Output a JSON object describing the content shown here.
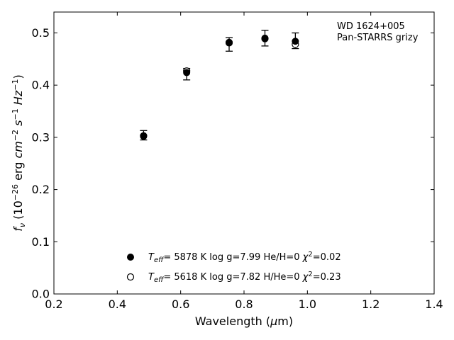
{
  "chart_data": {
    "type": "scatter",
    "xlabel": "Wavelength (μm)",
    "ylabel": "f_ν (10^-26 erg cm^-2 s^-1 Hz^-1)",
    "xlim": [
      0.2,
      1.4
    ],
    "ylim": [
      0.0,
      0.54
    ],
    "x_ticks": [
      0.2,
      0.4,
      0.6,
      0.8,
      1.0,
      1.2,
      1.4
    ],
    "y_ticks": [
      0.0,
      0.1,
      0.2,
      0.3,
      0.4,
      0.5
    ],
    "x_tick_labels": [
      "0.2",
      "0.4",
      "0.6",
      "0.8",
      "1.0",
      "1.2",
      "1.4"
    ],
    "y_tick_labels": [
      "0.0",
      "0.1",
      "0.2",
      "0.3",
      "0.4",
      "0.5"
    ],
    "grid": false,
    "annotation": [
      "WD 1624+005",
      "Pan-STARRS grizy"
    ],
    "annotation_position": "top-right",
    "observed": {
      "x": [
        0.483,
        0.619,
        0.753,
        0.866,
        0.962
      ],
      "y": [
        0.304,
        0.421,
        0.478,
        0.49,
        0.485
      ],
      "err": [
        0.009,
        0.011,
        0.013,
        0.015,
        0.015
      ]
    },
    "series": [
      {
        "name": "Teff= 5878 K log g=7.99 He/H=0 χ2=0.02",
        "marker": "filled-circle",
        "x": [
          0.483,
          0.619,
          0.753,
          0.866,
          0.962
        ],
        "y": [
          0.302,
          0.424,
          0.482,
          0.49,
          0.484
        ]
      },
      {
        "name": "Teff= 5618 K log g=7.82 H/He=0 χ2=0.23",
        "marker": "open-circle",
        "x": [
          0.483,
          0.619,
          0.753,
          0.866,
          0.962
        ],
        "y": [
          0.303,
          0.427,
          0.481,
          0.489,
          0.478
        ]
      }
    ],
    "legend": [
      {
        "marker": "filled-circle",
        "teff": "5878 K",
        "logg": "log g=7.99",
        "comp": "He/H=0",
        "chi2_value": "=0.02"
      },
      {
        "marker": "open-circle",
        "teff": "5618 K",
        "logg": "log g=7.82",
        "comp": "H/He=0",
        "chi2_value": "=0.23"
      }
    ],
    "legend_position": "bottom-center"
  }
}
